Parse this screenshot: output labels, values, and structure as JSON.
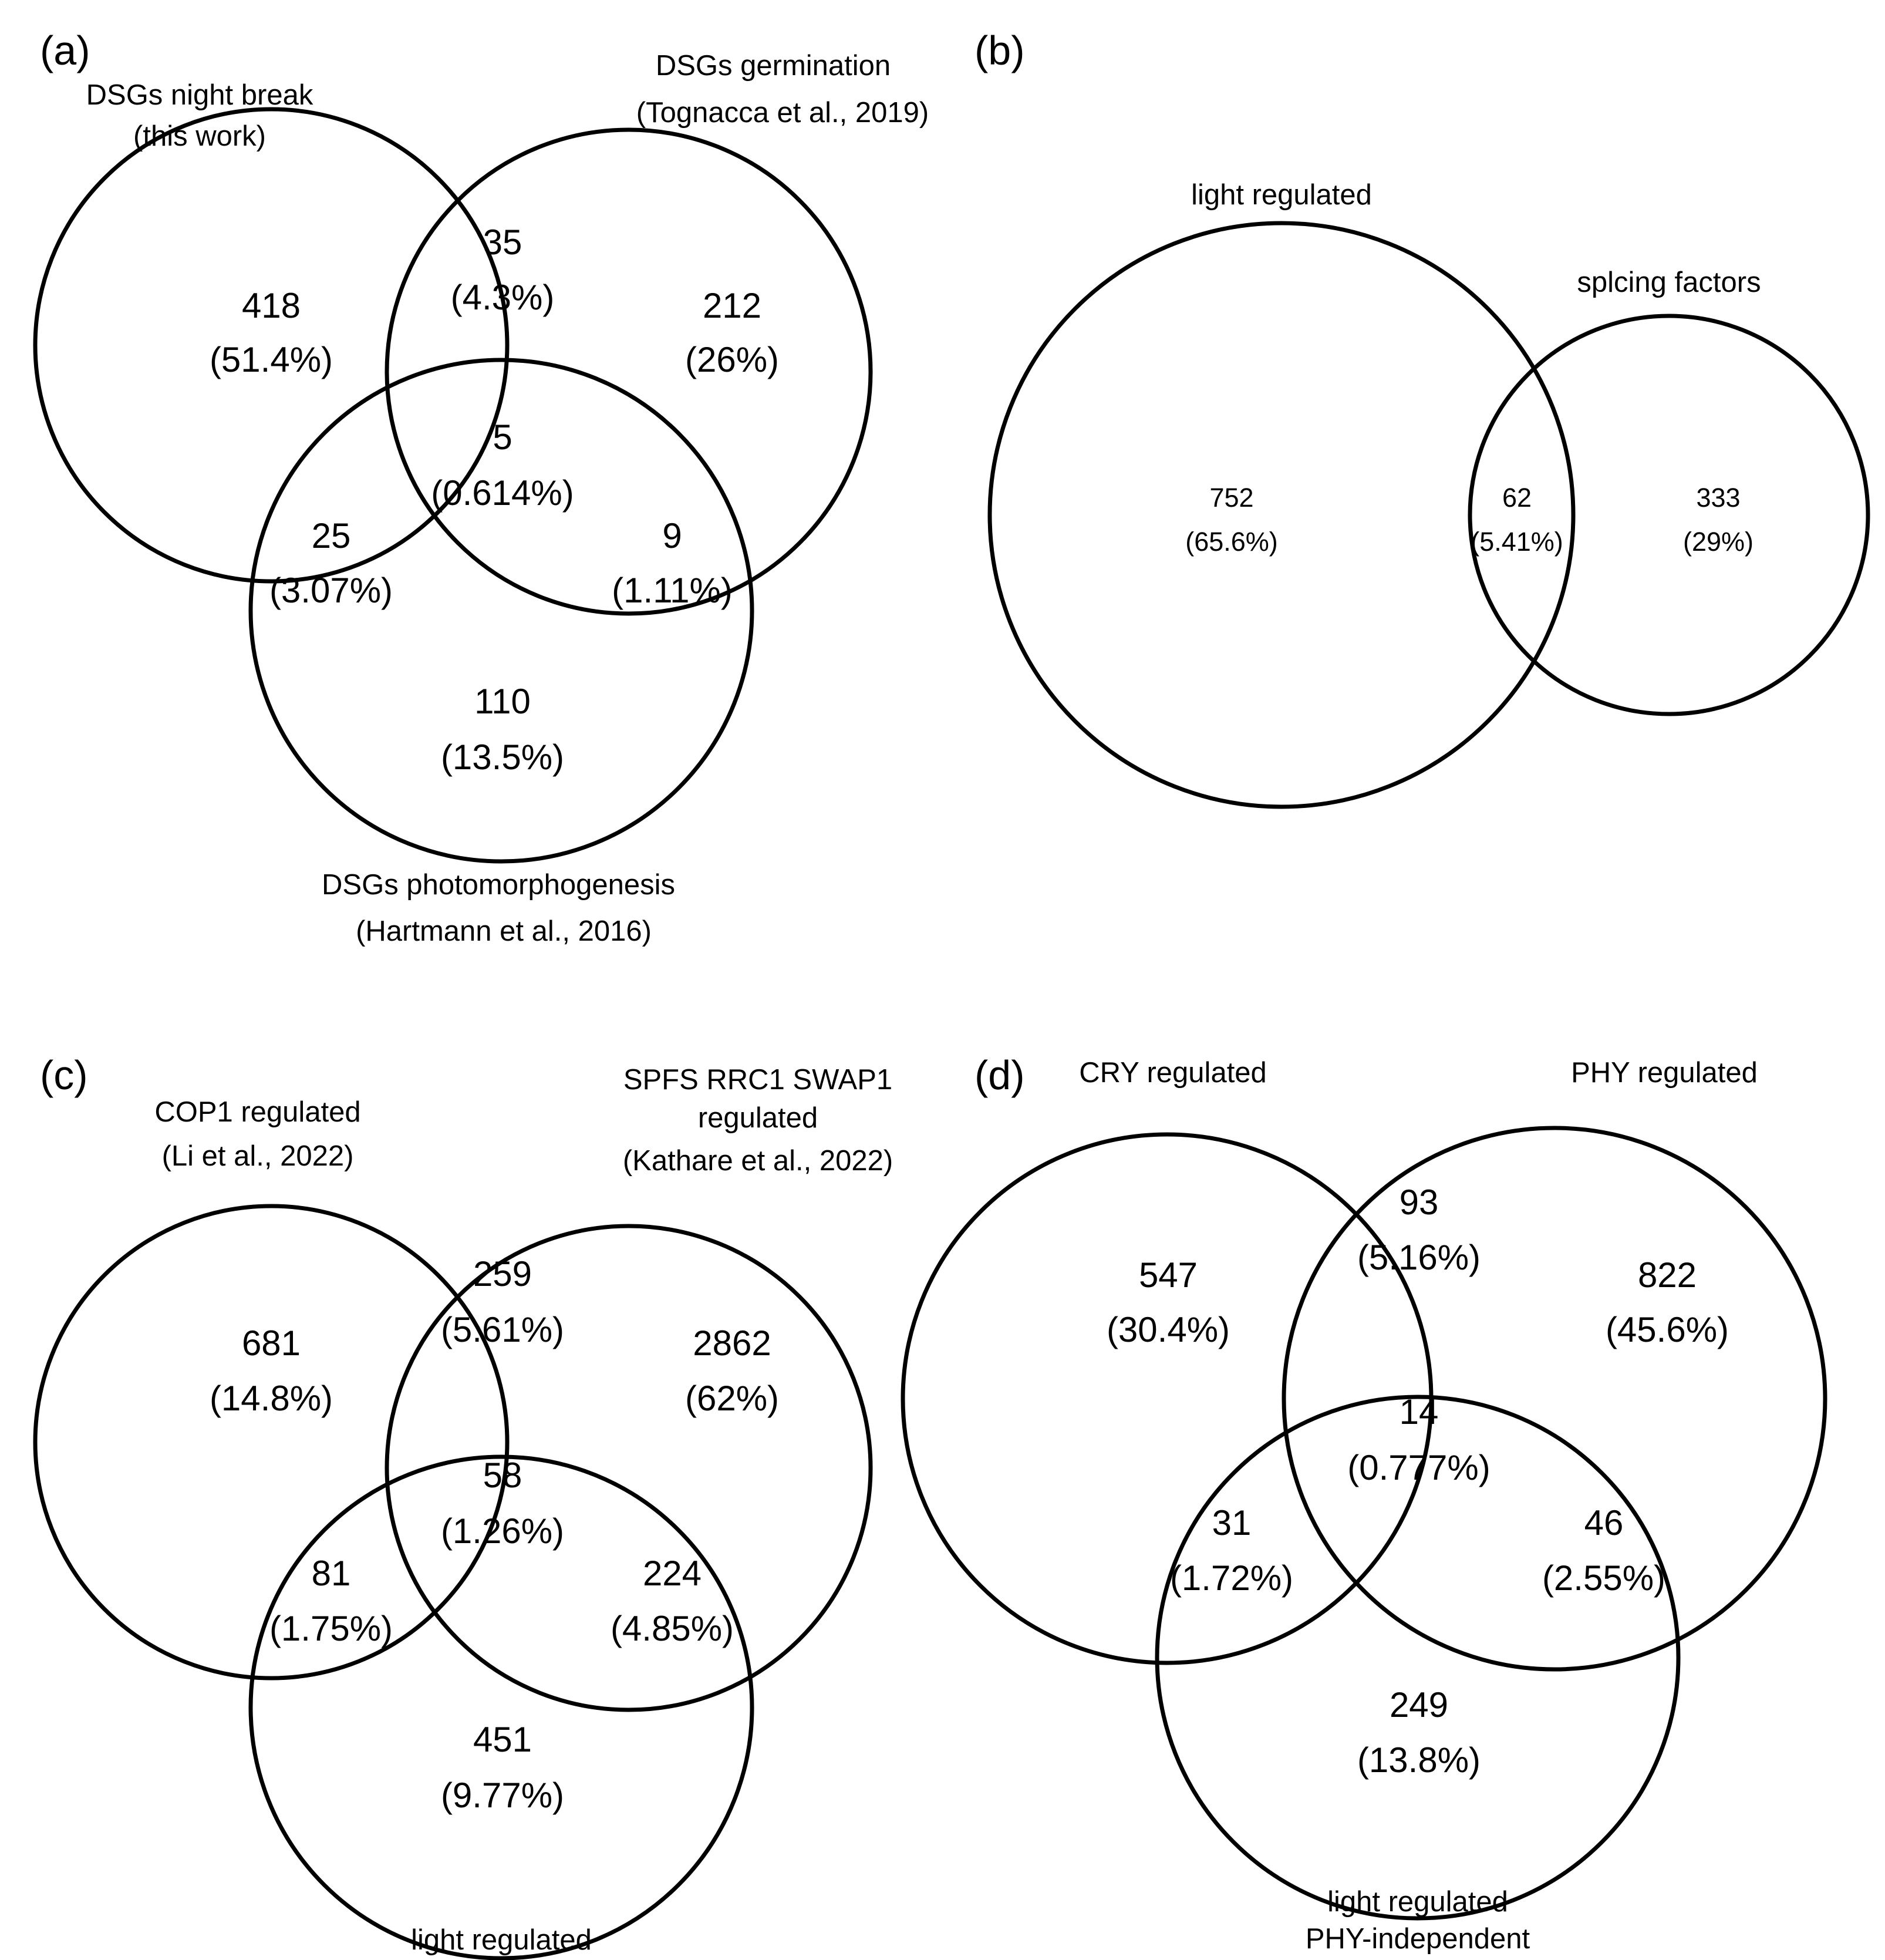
{
  "figure": {
    "panels": [
      {
        "id": "a",
        "panel_label": "(a)",
        "sets": [
          {
            "line1": "DSGs night break",
            "line2": "(this work)"
          },
          {
            "line1": "DSGs germination",
            "line2": "(Tognacca et al., 2019)"
          },
          {
            "line1": "DSGs photomorphogenesis",
            "line2": "(Hartmann et al., 2016)"
          }
        ],
        "regions": [
          {
            "count": "418",
            "pct": "(51.4%)"
          },
          {
            "count": "35",
            "pct": "(4.3%)"
          },
          {
            "count": "212",
            "pct": "(26%)"
          },
          {
            "count": "5",
            "pct": "(0.614%)"
          },
          {
            "count": "25",
            "pct": "(3.07%)"
          },
          {
            "count": "9",
            "pct": "(1.11%)"
          },
          {
            "count": "110",
            "pct": "(13.5%)"
          }
        ]
      },
      {
        "id": "b",
        "panel_label": "(b)",
        "sets": [
          {
            "line1": "light regulated"
          },
          {
            "line1": "splcing factors"
          }
        ],
        "regions": [
          {
            "count": "752",
            "pct": "(65.6%)"
          },
          {
            "count": "62",
            "pct": "(5.41%)"
          },
          {
            "count": "333",
            "pct": "(29%)"
          }
        ]
      },
      {
        "id": "c",
        "panel_label": "(c)",
        "sets": [
          {
            "line1": "COP1 regulated",
            "line2": "(Li et al., 2022)"
          },
          {
            "line1": "SPFS RRC1 SWAP1",
            "line2": "regulated",
            "line3": "(Kathare et al., 2022)"
          },
          {
            "line1": "light regulated"
          }
        ],
        "regions": [
          {
            "count": "681",
            "pct": "(14.8%)"
          },
          {
            "count": "259",
            "pct": "(5.61%)"
          },
          {
            "count": "2862",
            "pct": "(62%)"
          },
          {
            "count": "58",
            "pct": "(1.26%)"
          },
          {
            "count": "81",
            "pct": "(1.75%)"
          },
          {
            "count": "224",
            "pct": "(4.85%)"
          },
          {
            "count": "451",
            "pct": "(9.77%)"
          }
        ]
      },
      {
        "id": "d",
        "panel_label": "(d)",
        "sets": [
          {
            "line1": "CRY regulated"
          },
          {
            "line1": "PHY regulated"
          },
          {
            "line1": "light regulated",
            "line2": "PHY-independent"
          }
        ],
        "regions": [
          {
            "count": "547",
            "pct": "(30.4%)"
          },
          {
            "count": "93",
            "pct": "(5.16%)"
          },
          {
            "count": "822",
            "pct": "(45.6%)"
          },
          {
            "count": "14",
            "pct": "(0.777%)"
          },
          {
            "count": "31",
            "pct": "(1.72%)"
          },
          {
            "count": "46",
            "pct": "(2.55%)"
          },
          {
            "count": "249",
            "pct": "(13.8%)"
          }
        ]
      }
    ]
  }
}
